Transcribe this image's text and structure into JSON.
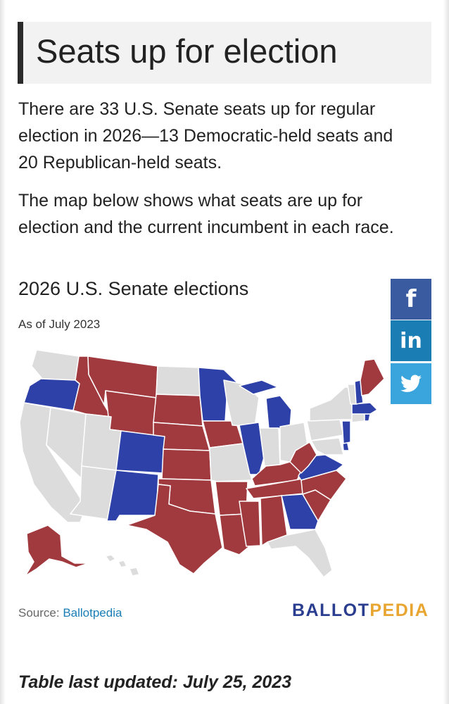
{
  "heading": "Seats up for election",
  "paragraphs": [
    "There are 33 U.S. Senate seats up for regular election in 2026—13 Democratic-held seats and 20 Republican-held seats.",
    "The map below shows what seats are up for election and the current incumbent in each race."
  ],
  "map": {
    "title": "2026 U.S. Senate elections",
    "subtitle": "As of July 2023",
    "colors": {
      "democratic": "#2e41a8",
      "republican": "#a13a3e",
      "none": "#dcdcdc",
      "border": "#ffffff"
    },
    "democratic_held": [
      "Oregon",
      "Colorado",
      "New Mexico",
      "Minnesota",
      "Michigan",
      "Illinois",
      "Georgia",
      "Virginia",
      "New Jersey",
      "Delaware",
      "New Hampshire",
      "Massachusetts",
      "Rhode Island"
    ],
    "republican_held": [
      "Alaska",
      "Idaho",
      "Montana",
      "Wyoming",
      "South Dakota",
      "Nebraska",
      "Kansas",
      "Oklahoma",
      "Texas",
      "Iowa",
      "Arkansas",
      "Louisiana",
      "Mississippi",
      "Alabama",
      "Tennessee",
      "Kentucky",
      "West Virginia",
      "North Carolina",
      "South Carolina",
      "Maine"
    ]
  },
  "share": {
    "facebook_icon": "f",
    "linkedin_icon": "in",
    "twitter_icon": "twitter-bird-icon"
  },
  "source": {
    "label": "Source:",
    "link_text": "Ballotpedia"
  },
  "brand": {
    "part1": "BALLOT",
    "part2": "PEDIA"
  },
  "updated": "Table last updated: July 25, 2023"
}
